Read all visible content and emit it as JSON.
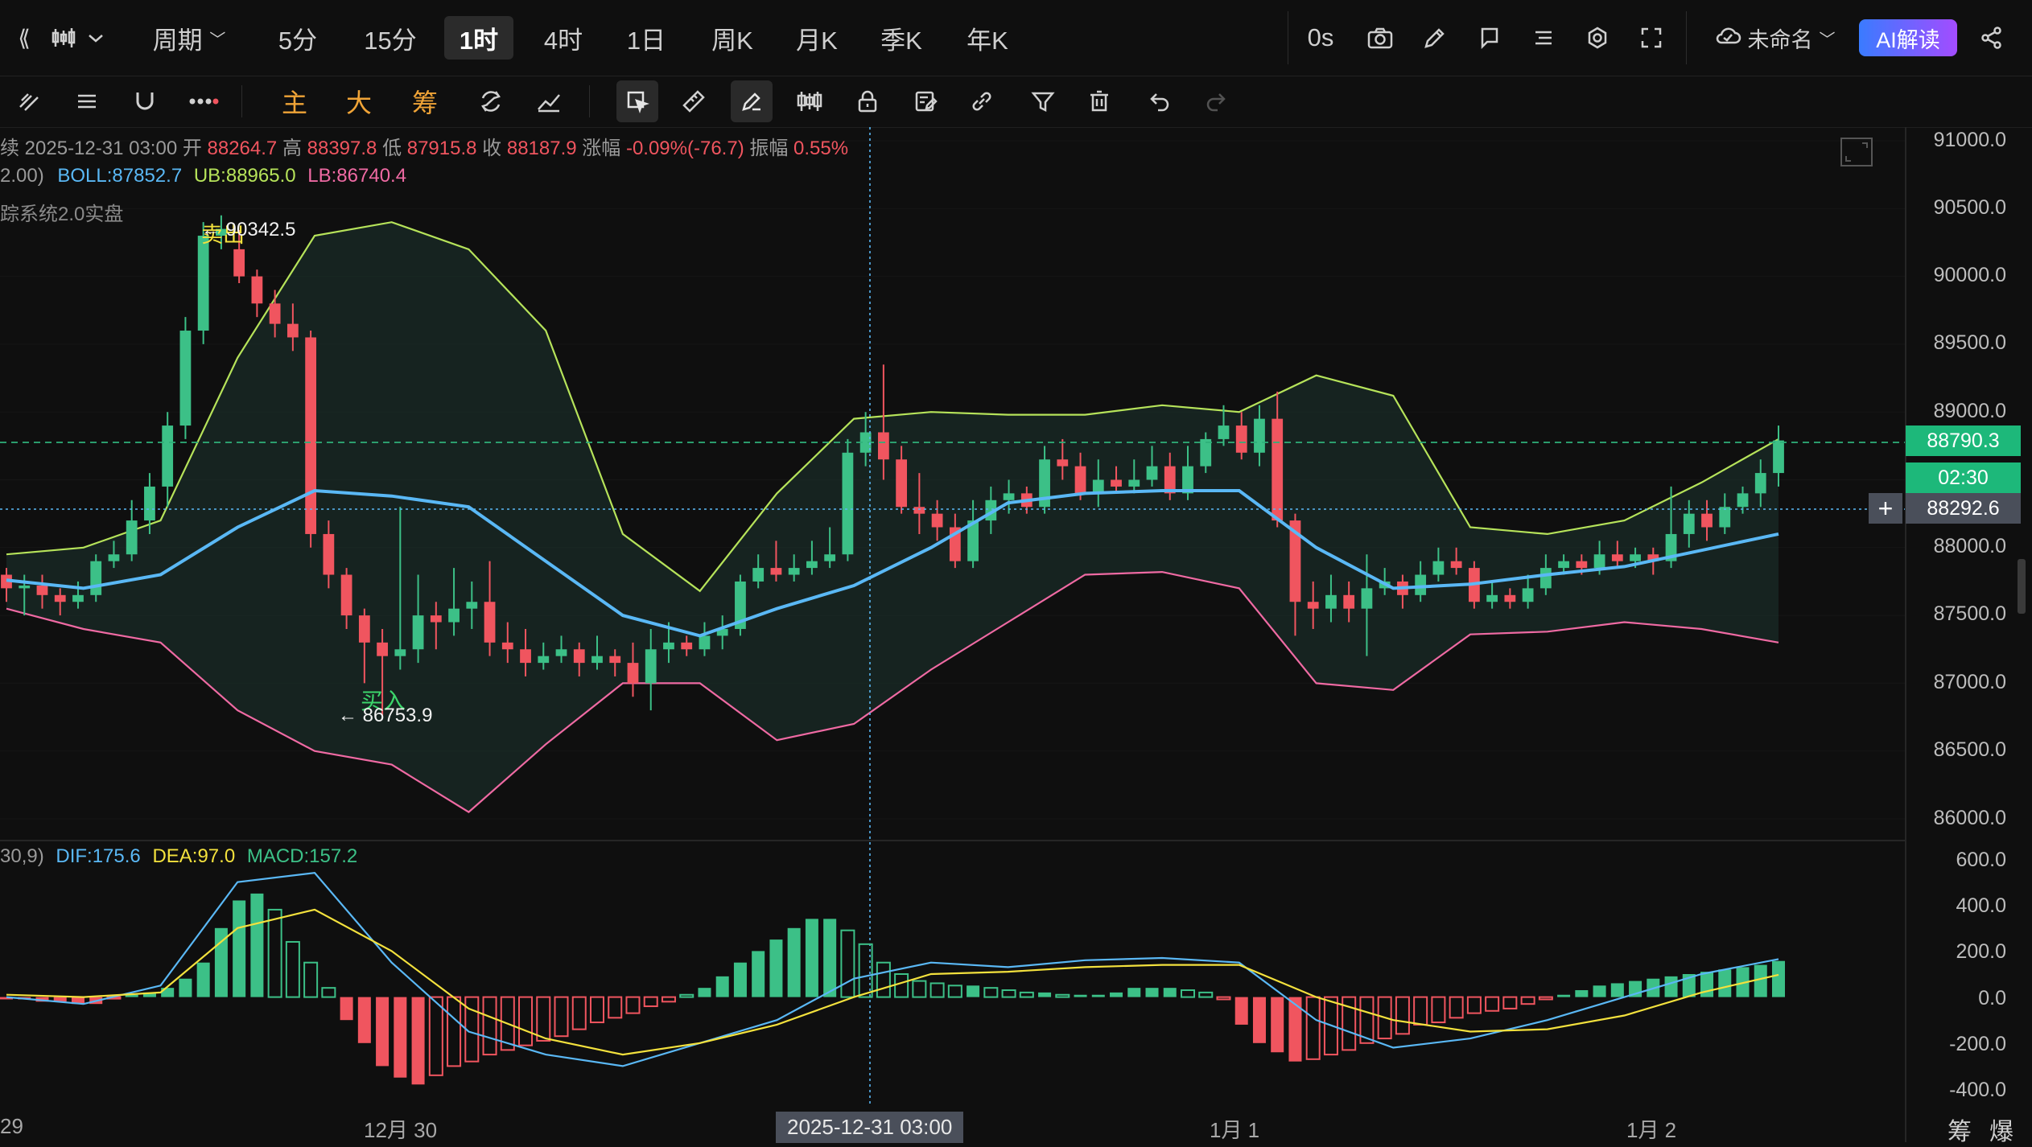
{
  "topbar": {
    "periods": [
      "周期",
      "5分",
      "15分",
      "1时",
      "4时",
      "1日",
      "周K",
      "月K",
      "季K",
      "年K"
    ],
    "active_period": "1时",
    "countdown": "0s",
    "layout_name": "未命名",
    "ai_button": "AI解读"
  },
  "toolbar": {
    "main_label": "主",
    "big_label": "大",
    "chip_label": "筹"
  },
  "ohlc": {
    "prefix": "续",
    "datetime": "2025-12-31 03:00",
    "open_label": "开",
    "open": "88264.7",
    "high_label": "高",
    "high": "88397.8",
    "low_label": "低",
    "low": "87915.8",
    "close_label": "收",
    "close": "88187.9",
    "change_label": "涨幅",
    "change": "-0.09%(-76.7)",
    "amp_label": "振幅",
    "amp": "0.55%"
  },
  "boll": {
    "params": "2.00)",
    "mid": "BOLL:87852.7",
    "ub": "UB:88965.0",
    "lb": "LB:86740.4"
  },
  "strategy_label": "踪系统2.0实盘",
  "annotations": {
    "sell_label": "卖出",
    "sell_price": "← 90342.5",
    "buy_label": "买入",
    "buy_price": "← 86753.9"
  },
  "price_axis": [
    "91000.0",
    "90500.0",
    "90000.0",
    "89500.0",
    "89000.0",
    "88500.0",
    "88000.0",
    "87500.0",
    "87000.0",
    "86500.0",
    "86000.0"
  ],
  "price_tags": {
    "last": "88790.3",
    "countdown": "02:30",
    "cursor": "88292.6"
  },
  "macd": {
    "params": "30,9)",
    "dif": "DIF:175.6",
    "dea": "DEA:97.0",
    "macd": "MACD:157.2"
  },
  "macd_axis": [
    "600.0",
    "400.0",
    "200.0",
    "0.0",
    "-200.0",
    "-400.0"
  ],
  "x_axis": {
    "left": "29",
    "d1": "12月 30",
    "cursor": "2025-12-31 03:00",
    "d2": "1月 1",
    "d3": "1月 2"
  },
  "bottom_right": [
    "筹",
    "爆"
  ],
  "colors": {
    "up": "#3cc087",
    "down": "#f0555f",
    "boll_mid": "#5ab8f5",
    "boll_ub": "#b6e35a",
    "boll_lb": "#ef6aa3",
    "dif": "#5ab8f5",
    "dea": "#f3e13d",
    "last_tag": "#1db87a",
    "cursor_tag": "#4a4f5a"
  },
  "chart_data": {
    "type": "candlestick",
    "timeframe": "1时",
    "ylim": [
      85900,
      91100
    ],
    "candles": [
      [
        87800,
        87700,
        87850,
        87600
      ],
      [
        87700,
        87720,
        87800,
        87500
      ],
      [
        87720,
        87650,
        87800,
        87550
      ],
      [
        87650,
        87600,
        87700,
        87500
      ],
      [
        87600,
        87650,
        87750,
        87550
      ],
      [
        87650,
        87900,
        87950,
        87600
      ],
      [
        87900,
        87950,
        88050,
        87850
      ],
      [
        87950,
        88200,
        88350,
        87900
      ],
      [
        88200,
        88450,
        88550,
        88100
      ],
      [
        88450,
        88900,
        89000,
        88300
      ],
      [
        88900,
        89600,
        89700,
        88800
      ],
      [
        89600,
        90300,
        90400,
        89500
      ],
      [
        90300,
        90350,
        90450,
        90200
      ],
      [
        90200,
        90000,
        90342,
        89950
      ],
      [
        90000,
        89800,
        90050,
        89700
      ],
      [
        89800,
        89650,
        89900,
        89550
      ],
      [
        89650,
        89550,
        89800,
        89450
      ],
      [
        89550,
        88100,
        89600,
        88000
      ],
      [
        88100,
        87800,
        88200,
        87700
      ],
      [
        87800,
        87500,
        87850,
        87400
      ],
      [
        87500,
        87300,
        87550,
        87000
      ],
      [
        87300,
        87200,
        87400,
        86754
      ],
      [
        87200,
        87250,
        88300,
        87100
      ],
      [
        87250,
        87500,
        87800,
        87150
      ],
      [
        87500,
        87450,
        87600,
        87250
      ],
      [
        87450,
        87550,
        87850,
        87350
      ],
      [
        87550,
        87600,
        87750,
        87400
      ],
      [
        87600,
        87300,
        87900,
        87200
      ],
      [
        87300,
        87250,
        87450,
        87150
      ],
      [
        87250,
        87150,
        87400,
        87050
      ],
      [
        87150,
        87200,
        87300,
        87100
      ],
      [
        87200,
        87250,
        87350,
        87150
      ],
      [
        87250,
        87150,
        87300,
        87050
      ],
      [
        87150,
        87200,
        87350,
        87100
      ],
      [
        87200,
        87150,
        87250,
        87050
      ],
      [
        87150,
        87000,
        87300,
        86900
      ],
      [
        87000,
        87250,
        87400,
        86800
      ],
      [
        87250,
        87300,
        87450,
        87150
      ],
      [
        87300,
        87250,
        87350,
        87200
      ],
      [
        87250,
        87350,
        87450,
        87200
      ],
      [
        87350,
        87400,
        87500,
        87250
      ],
      [
        87400,
        87750,
        87800,
        87350
      ],
      [
        87750,
        87850,
        87950,
        87700
      ],
      [
        87850,
        87800,
        88050,
        87750
      ],
      [
        87800,
        87850,
        87950,
        87750
      ],
      [
        87850,
        87900,
        88050,
        87800
      ],
      [
        87900,
        87950,
        88150,
        87850
      ],
      [
        87950,
        88700,
        88800,
        87900
      ],
      [
        88700,
        88850,
        89000,
        88600
      ],
      [
        88850,
        88650,
        89350,
        88500
      ],
      [
        88650,
        88300,
        88750,
        88250
      ],
      [
        88300,
        88250,
        88550,
        88100
      ],
      [
        88250,
        88150,
        88350,
        88050
      ],
      [
        88150,
        87900,
        88250,
        87850
      ],
      [
        87900,
        88200,
        88350,
        87850
      ],
      [
        88200,
        88350,
        88450,
        88100
      ],
      [
        88350,
        88400,
        88500,
        88250
      ],
      [
        88400,
        88300,
        88450,
        88250
      ],
      [
        88300,
        88650,
        88750,
        88250
      ],
      [
        88650,
        88600,
        88800,
        88500
      ],
      [
        88600,
        88400,
        88700,
        88350
      ],
      [
        88400,
        88500,
        88650,
        88300
      ],
      [
        88500,
        88450,
        88600,
        88400
      ],
      [
        88450,
        88500,
        88650,
        88400
      ],
      [
        88500,
        88600,
        88750,
        88450
      ],
      [
        88600,
        88400,
        88700,
        88350
      ],
      [
        88400,
        88600,
        88750,
        88350
      ],
      [
        88600,
        88800,
        88850,
        88550
      ],
      [
        88800,
        88900,
        89050,
        88750
      ],
      [
        88900,
        88700,
        89000,
        88650
      ],
      [
        88700,
        88950,
        89050,
        88600
      ],
      [
        88950,
        88200,
        89150,
        88150
      ],
      [
        88200,
        87600,
        88250,
        87350
      ],
      [
        87600,
        87550,
        87750,
        87400
      ],
      [
        87550,
        87650,
        87800,
        87450
      ],
      [
        87650,
        87550,
        87750,
        87450
      ],
      [
        87550,
        87700,
        87950,
        87200
      ],
      [
        87700,
        87750,
        87850,
        87650
      ],
      [
        87750,
        87650,
        87800,
        87550
      ],
      [
        87650,
        87800,
        87900,
        87600
      ],
      [
        87800,
        87900,
        88000,
        87750
      ],
      [
        87900,
        87850,
        88000,
        87800
      ],
      [
        87850,
        87600,
        87900,
        87550
      ],
      [
        87600,
        87650,
        87750,
        87550
      ],
      [
        87650,
        87600,
        87700,
        87550
      ],
      [
        87600,
        87700,
        87800,
        87550
      ],
      [
        87700,
        87850,
        87950,
        87650
      ],
      [
        87850,
        87900,
        87950,
        87800
      ],
      [
        87900,
        87850,
        87950,
        87800
      ],
      [
        87850,
        87950,
        88050,
        87800
      ],
      [
        87950,
        87900,
        88050,
        87850
      ],
      [
        87900,
        87950,
        88000,
        87850
      ],
      [
        87950,
        87900,
        88000,
        87800
      ],
      [
        87900,
        88100,
        88450,
        87850
      ],
      [
        88100,
        88250,
        88350,
        88000
      ],
      [
        88250,
        88150,
        88350,
        88050
      ],
      [
        88150,
        88300,
        88400,
        88100
      ],
      [
        88300,
        88400,
        88450,
        88250
      ],
      [
        88400,
        88550,
        88650,
        88300
      ],
      [
        88550,
        88790,
        88900,
        88450
      ]
    ],
    "boll_mid": [
      87760,
      87700,
      87800,
      88150,
      88420,
      88380,
      88300,
      87900,
      87500,
      87350,
      87550,
      87720,
      88000,
      88330,
      88400,
      88420,
      88420,
      88000,
      87700,
      87730,
      87800,
      87860,
      87980,
      88100
    ],
    "boll_ub": [
      87950,
      88000,
      88200,
      89400,
      90300,
      90400,
      90200,
      89600,
      88100,
      87680,
      88400,
      88950,
      89000,
      88980,
      88980,
      89050,
      89000,
      89270,
      89120,
      88150,
      88100,
      88200,
      88480,
      88800
    ],
    "boll_lb": [
      87550,
      87400,
      87300,
      86800,
      86500,
      86400,
      86050,
      86550,
      87000,
      87000,
      86580,
      86700,
      87100,
      87450,
      87800,
      87820,
      87700,
      87000,
      86950,
      87360,
      87380,
      87450,
      87400,
      87300
    ],
    "macd_dif": [
      0,
      -30,
      50,
      500,
      540,
      150,
      -150,
      -250,
      -300,
      -200,
      -100,
      80,
      150,
      130,
      160,
      170,
      150,
      -100,
      -220,
      -180,
      -100,
      0,
      100,
      165
    ],
    "macd_dea": [
      10,
      0,
      20,
      300,
      380,
      200,
      -50,
      -180,
      -250,
      -200,
      -120,
      0,
      100,
      110,
      130,
      140,
      140,
      0,
      -100,
      -150,
      -140,
      -80,
      20,
      97
    ],
    "macd_hist": [
      -10,
      -10,
      -20,
      -20,
      -30,
      -30,
      -5,
      10,
      20,
      40,
      80,
      150,
      300,
      420,
      450,
      380,
      240,
      150,
      40,
      -100,
      -200,
      -300,
      -350,
      -380,
      -340,
      -300,
      -280,
      -250,
      -230,
      -210,
      -190,
      -170,
      -140,
      -110,
      -90,
      -70,
      -40,
      -20,
      10,
      40,
      90,
      150,
      200,
      250,
      300,
      340,
      340,
      290,
      230,
      150,
      100,
      70,
      60,
      50,
      50,
      40,
      30,
      20,
      20,
      10,
      10,
      10,
      20,
      40,
      40,
      40,
      30,
      20,
      -10,
      -120,
      -200,
      -240,
      -280,
      -270,
      -250,
      -230,
      -200,
      -180,
      -160,
      -120,
      -110,
      -90,
      -70,
      -60,
      -50,
      -30,
      -10,
      10,
      30,
      50,
      60,
      70,
      80,
      90,
      100,
      110,
      120,
      130,
      140,
      157
    ]
  }
}
